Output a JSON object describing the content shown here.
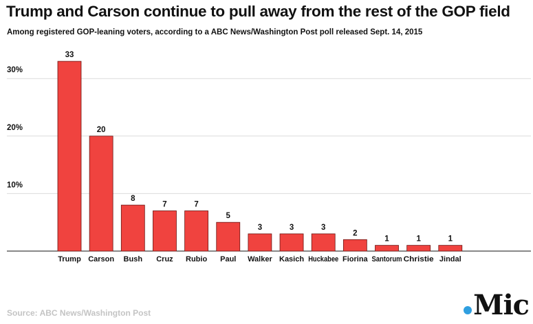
{
  "chart_data": {
    "type": "bar",
    "title": "Trump and Carson continue to pull away from the rest of the GOP field",
    "subtitle": "Among registered GOP-leaning voters, according to a ABC News/Washington Post poll released Sept. 14, 2015",
    "categories": [
      "Trump",
      "Carson",
      "Bush",
      "Cruz",
      "Rubio",
      "Paul",
      "Walker",
      "Kasich",
      "Huckabee",
      "Fiorina",
      "Santorum",
      "Christie",
      "Jindal"
    ],
    "values": [
      33,
      20,
      8,
      7,
      7,
      5,
      3,
      3,
      3,
      2,
      1,
      1,
      1
    ],
    "data_labels": [
      "33",
      "20",
      "8",
      "7",
      "7",
      "5",
      "3",
      "3",
      "3",
      "2",
      "1",
      "1",
      "1"
    ],
    "yticks": [
      {
        "value": 10,
        "label": "10%"
      },
      {
        "value": 20,
        "label": "20%"
      },
      {
        "value": 30,
        "label": "30%"
      }
    ],
    "ylim": [
      0,
      36
    ],
    "xlabel": "",
    "ylabel": "",
    "grid": true,
    "legend": "none",
    "bar_color": "#f0433f",
    "bar_stroke": "#6a1512"
  },
  "source": "Source: ABC News/Washington Post",
  "brand": {
    "name": "Mic",
    "dot_color": "#2f9fe0"
  }
}
